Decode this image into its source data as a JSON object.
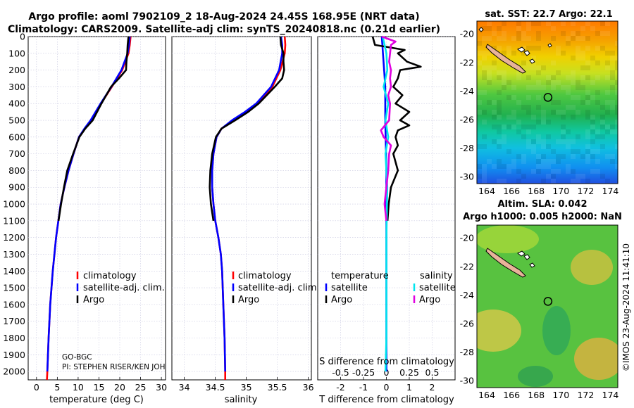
{
  "figure": {
    "title_line1": "Argo profile: aoml 7902109_2 18-Aug-2024 24.45S 168.95E (NRT data)",
    "title_line2": "Climatology: CARS2009. Satellite-adj clim: synTS_20240818.nc (0.21d earlier)",
    "side_label": "©IMOS 23-Aug-2024 11:41:10",
    "colors": {
      "climatology": "#ff0000",
      "satellite": "#0000ff",
      "argo": "#000000",
      "sat_diff": "#00e5ee",
      "argo_sal_diff": "#e000e0"
    }
  },
  "chart_data": [
    {
      "type": "line",
      "name": "temperature",
      "xlabel": "temperature (deg C)",
      "xlim": [
        -2,
        31
      ],
      "ylim": [
        2050,
        0
      ],
      "xticks": [
        "0",
        "5",
        "10",
        "15",
        "20",
        "25",
        "30"
      ],
      "yticks": [
        "0",
        "100",
        "200",
        "300",
        "400",
        "500",
        "600",
        "700",
        "800",
        "900",
        "1000",
        "1100",
        "1200",
        "1300",
        "1400",
        "1500",
        "1600",
        "1700",
        "1800",
        "1900",
        "2000"
      ],
      "legend": [
        "climatology",
        "satellite-adj. clim.",
        "Argo"
      ],
      "annotations": [
        "GO-BGC",
        "PI: STEPHEN RISER/KEN JOHNSON"
      ],
      "series": [
        {
          "name": "climatology",
          "depth": [
            0,
            50,
            100,
            200,
            300,
            400,
            500,
            550,
            600,
            700,
            800,
            900,
            1000,
            1200,
            1400,
            1600,
            1800,
            2000,
            2050
          ],
          "values": [
            22.6,
            22.4,
            22.1,
            20.6,
            18.1,
            15.5,
            13.1,
            11.6,
            10.2,
            8.9,
            7.7,
            6.7,
            5.8,
            4.7,
            3.9,
            3.3,
            2.9,
            2.6,
            2.5
          ]
        },
        {
          "name": "satellite-adj. clim.",
          "depth": [
            0,
            50,
            100,
            200,
            300,
            400,
            500,
            550,
            600,
            700,
            800,
            900,
            1000,
            1200,
            1400,
            1600,
            1800,
            2000
          ],
          "values": [
            22.4,
            22.2,
            21.9,
            20.4,
            18.0,
            15.4,
            13.0,
            11.5,
            10.2,
            8.9,
            7.7,
            6.7,
            5.8,
            4.7,
            3.9,
            3.3,
            2.9,
            2.6
          ]
        },
        {
          "name": "Argo",
          "depth": [
            0,
            50,
            100,
            150,
            200,
            250,
            300,
            400,
            500,
            550,
            600,
            700,
            800,
            900,
            1000,
            1100
          ],
          "values": [
            22.1,
            21.9,
            21.8,
            21.6,
            21.5,
            19.8,
            17.9,
            15.6,
            13.5,
            11.7,
            10.3,
            8.8,
            7.4,
            6.6,
            5.9,
            5.3
          ]
        }
      ]
    },
    {
      "type": "line",
      "name": "salinity",
      "xlabel": "salinity",
      "xlim": [
        33.8,
        36.05
      ],
      "ylim": [
        2050,
        0
      ],
      "xticks": [
        "34",
        "34.5",
        "35",
        "35.5",
        "36"
      ],
      "legend": [
        "climatology",
        "satellite-adj. clim.",
        "Argo"
      ],
      "series": [
        {
          "name": "climatology",
          "depth": [
            0,
            50,
            100,
            200,
            300,
            400,
            450,
            500,
            550,
            600,
            700,
            800,
            900,
            1000,
            1100,
            1200,
            1300,
            1400,
            1600,
            1800,
            2000,
            2050
          ],
          "values": [
            35.62,
            35.63,
            35.62,
            35.55,
            35.42,
            35.17,
            34.99,
            34.78,
            34.6,
            34.52,
            34.47,
            34.45,
            34.45,
            34.47,
            34.5,
            34.55,
            34.59,
            34.61,
            34.63,
            34.65,
            34.66,
            34.66
          ]
        },
        {
          "name": "satellite-adj. clim.",
          "depth": [
            0,
            50,
            100,
            200,
            300,
            400,
            450,
            500,
            550,
            600,
            700,
            800,
            900,
            1000,
            1100,
            1200,
            1300,
            1400,
            1600,
            1800,
            2000
          ],
          "values": [
            35.56,
            35.58,
            35.58,
            35.53,
            35.4,
            35.16,
            34.98,
            34.77,
            34.6,
            34.52,
            34.47,
            34.45,
            34.45,
            34.47,
            34.5,
            34.55,
            34.59,
            34.61,
            34.63,
            34.65,
            34.66
          ]
        },
        {
          "name": "Argo",
          "depth": [
            0,
            50,
            100,
            150,
            200,
            250,
            300,
            400,
            450,
            500,
            550,
            600,
            700,
            800,
            900,
            1000,
            1100
          ],
          "values": [
            35.55,
            35.56,
            35.6,
            35.6,
            35.61,
            35.58,
            35.46,
            35.2,
            35.03,
            34.82,
            34.6,
            34.51,
            34.45,
            34.42,
            34.41,
            34.43,
            34.47
          ]
        }
      ]
    },
    {
      "type": "line",
      "name": "difference",
      "xlabel": "T difference from climatology",
      "top_xlabel": "S difference from climatology",
      "xlim": [
        -3,
        3
      ],
      "ylim": [
        2050,
        0
      ],
      "xticks": [
        "-2",
        "-1",
        "0",
        "1",
        "2"
      ],
      "top_xticks": [
        "-0.5",
        "-0.25",
        "0",
        "0.25",
        "0.5"
      ],
      "legend_left_title": "temperature",
      "legend_right_title": "salinity",
      "legend_left": [
        "satellite",
        "Argo"
      ],
      "legend_right": [
        "satellite",
        "Argo"
      ],
      "series": [
        {
          "name": "T satellite",
          "depth": [
            0,
            100,
            200,
            300,
            500,
            800,
            1200,
            1600,
            2000
          ],
          "values": [
            -0.2,
            -0.15,
            -0.1,
            -0.05,
            -0.05,
            0,
            0,
            0,
            0
          ]
        },
        {
          "name": "T Argo",
          "depth": [
            0,
            50,
            80,
            100,
            150,
            180,
            200,
            250,
            300,
            350,
            400,
            450,
            500,
            530,
            560,
            600,
            650,
            700,
            800,
            900,
            1000,
            1100
          ],
          "values": [
            -0.6,
            -0.5,
            0.8,
            0.5,
            0.9,
            1.5,
            0.6,
            0.5,
            0.3,
            0.7,
            0.4,
            1.0,
            0.6,
            1.0,
            0.5,
            0.4,
            0.5,
            0.3,
            0.5,
            0.2,
            0.1,
            0.05
          ]
        },
        {
          "name": "S satellite",
          "depth": [
            0,
            50,
            100,
            200,
            300,
            400,
            500,
            600,
            700,
            900,
            1200,
            1500,
            1800,
            2000
          ],
          "values": [
            -0.04,
            -0.02,
            0.0,
            0.01,
            -0.03,
            0.02,
            -0.01,
            0.02,
            -0.01,
            0.01,
            0.0,
            0.0,
            0.0,
            -0.01
          ]
        },
        {
          "name": "S Argo",
          "depth": [
            0,
            30,
            50,
            100,
            150,
            200,
            250,
            300,
            350,
            400,
            500,
            560,
            600,
            650,
            700,
            800,
            900,
            1000,
            1100
          ],
          "values": [
            -0.05,
            0.1,
            0.05,
            0.04,
            0.03,
            0.05,
            0.04,
            0.05,
            0.02,
            0.04,
            0.03,
            -0.06,
            -0.03,
            0.05,
            0.03,
            0.02,
            0.0,
            -0.02,
            0.0
          ]
        }
      ]
    },
    {
      "type": "heatmap",
      "name": "sst_map",
      "title": "sat. SST: 22.7 Argo: 22.1",
      "xlim": [
        163.2,
        174.6
      ],
      "ylim": [
        -30.5,
        -19.1
      ],
      "xticks": [
        "164",
        "166",
        "168",
        "170",
        "172",
        "174"
      ],
      "yticks": [
        "-20",
        "-22",
        "-24",
        "-26",
        "-28",
        "-30"
      ],
      "marker": {
        "lon": 168.95,
        "lat": -24.45
      }
    },
    {
      "type": "heatmap",
      "name": "sla_map",
      "title_line1": "Altim. SLA: 0.042",
      "title_line2": "Argo h1000: 0.005 h2000: NaN",
      "xlim": [
        163.2,
        174.6
      ],
      "ylim": [
        -30.5,
        -19.1
      ],
      "xticks": [
        "164",
        "166",
        "168",
        "170",
        "172",
        "174"
      ],
      "yticks": [
        "-20",
        "-22",
        "-24",
        "-26",
        "-28",
        "-30"
      ],
      "marker": {
        "lon": 168.95,
        "lat": -24.45
      }
    }
  ]
}
